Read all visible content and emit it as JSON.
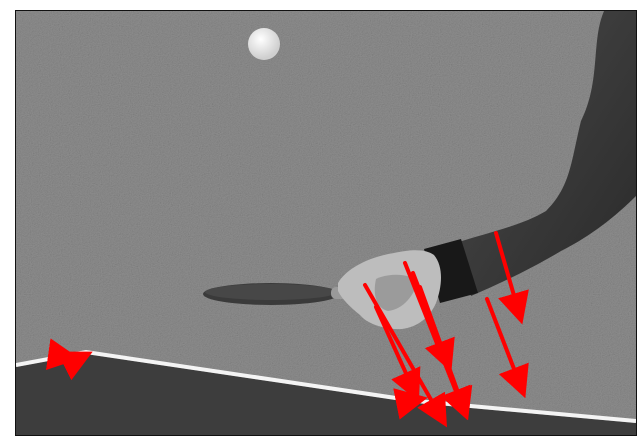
{
  "image": {
    "description_free": true,
    "colors": {
      "background_wall": "#8f8f8f",
      "table_surface": "#3d3d3d",
      "table_edge": "#f4f4f4",
      "sleeve": "#2f2f2f",
      "cuff": "#181818",
      "hand": "#bdbdbd",
      "paddle": "#3a3a3a",
      "ball": "#f2f2f2",
      "motion_vectors": "#ff0000"
    },
    "icons": [
      "ping-pong-ball",
      "paddle",
      "motion-vector-arrows"
    ]
  }
}
